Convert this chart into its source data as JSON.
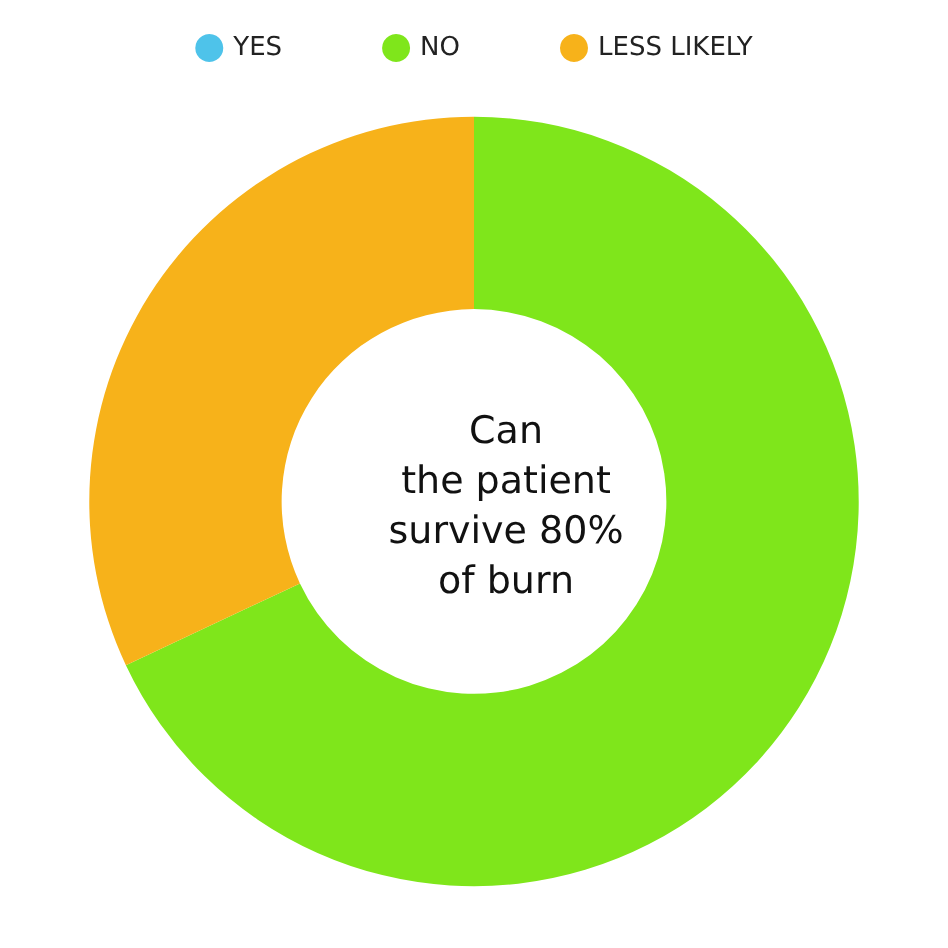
{
  "chart_data": {
    "type": "donut",
    "title": "Can\nthe patient\nsurvive 80%\nof burn",
    "categories": [
      "YES",
      "NO",
      "LESS LIKELY"
    ],
    "values": [
      0,
      68,
      32
    ],
    "colors": [
      "#4ec3ea",
      "#7fe61b",
      "#f7b21a"
    ],
    "legend": "top"
  }
}
